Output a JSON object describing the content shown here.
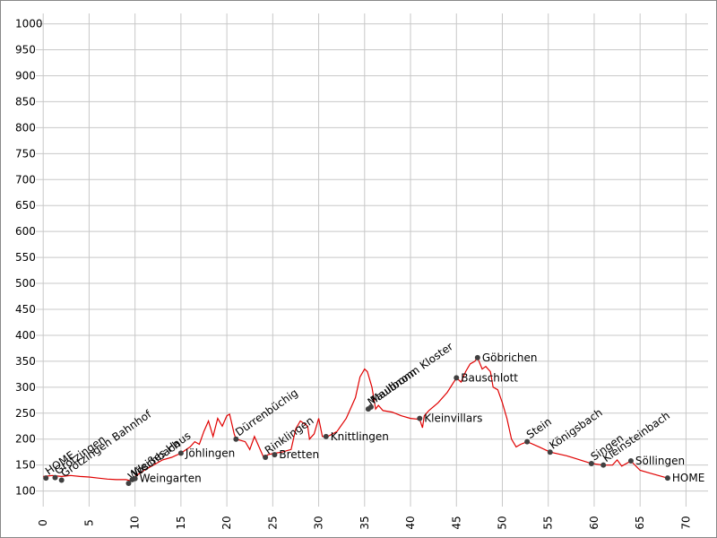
{
  "chart_data": {
    "type": "line",
    "color": "#e00000",
    "point_color": "#404040",
    "grid": true,
    "xlim": [
      -0.8,
      72.4
    ],
    "ylim": [
      70,
      1020
    ],
    "xticks": [
      0,
      5,
      10,
      15,
      20,
      25,
      30,
      35,
      40,
      45,
      50,
      55,
      60,
      65,
      70
    ],
    "yticks": [
      100,
      150,
      200,
      250,
      300,
      350,
      400,
      450,
      500,
      550,
      600,
      650,
      700,
      750,
      800,
      850,
      900,
      950,
      1000
    ],
    "x": [
      0,
      1,
      2,
      3,
      4,
      5,
      6,
      7,
      8,
      9,
      9.5,
      10,
      11,
      12,
      13,
      14,
      15,
      16,
      16.5,
      17,
      17.5,
      18,
      18.5,
      19,
      19.5,
      20,
      20.3,
      20.8,
      21,
      22,
      22.5,
      23,
      23.5,
      24,
      24.5,
      25,
      26,
      27,
      27.5,
      28,
      28.8,
      29,
      29.5,
      30,
      30.4,
      31,
      32,
      33,
      34,
      34.5,
      35,
      35.3,
      35.8,
      36.2,
      36.5,
      37,
      38,
      39,
      40,
      41,
      41.3,
      41.5,
      42,
      43,
      44,
      45,
      45.5,
      46,
      46.5,
      47,
      47.3,
      47.8,
      48.2,
      48.7,
      49,
      49.5,
      50,
      50.5,
      51,
      51.5,
      52,
      52.7,
      54,
      55.2,
      57,
      59.7,
      61,
      62,
      62.5,
      63,
      64,
      65,
      66,
      68
    ],
    "values": [
      128,
      130,
      128,
      130,
      128,
      127,
      125,
      123,
      122,
      122,
      120,
      128,
      140,
      150,
      160,
      165,
      173,
      185,
      195,
      190,
      215,
      235,
      205,
      240,
      225,
      245,
      248,
      210,
      200,
      195,
      180,
      205,
      185,
      165,
      170,
      172,
      175,
      180,
      220,
      235,
      225,
      200,
      210,
      240,
      205,
      205,
      215,
      240,
      280,
      320,
      335,
      330,
      300,
      258,
      265,
      255,
      252,
      245,
      240,
      238,
      222,
      245,
      255,
      270,
      290,
      318,
      310,
      330,
      345,
      350,
      357,
      335,
      340,
      330,
      300,
      295,
      270,
      240,
      200,
      185,
      190,
      195,
      185,
      175,
      168,
      153,
      150,
      150,
      160,
      148,
      158,
      140,
      135,
      125
    ],
    "waypoints": [
      {
        "label": "HOME",
        "x": 0.3,
        "y": 125
      },
      {
        "label": "Grötzingen",
        "x": 1.3,
        "y": 126
      },
      {
        "label": "Grötzingen Bahnhof",
        "x": 2,
        "y": 121
      },
      {
        "label": "Wöschbach",
        "x": 9.3,
        "y": 115
      },
      {
        "label": "Weißes Haus",
        "x": 9.7,
        "y": 122
      },
      {
        "label": "Weingarten",
        "x": 10,
        "y": 124
      },
      {
        "label": "Jöhlingen",
        "x": 15,
        "y": 173
      },
      {
        "label": "Dürrenbüchig",
        "x": 21,
        "y": 200
      },
      {
        "label": "Rinklingen",
        "x": 24.2,
        "y": 165
      },
      {
        "label": "Bretten",
        "x": 25.2,
        "y": 170
      },
      {
        "label": "Knittlingen",
        "x": 30.8,
        "y": 205
      },
      {
        "label": "Maulbronn",
        "x": 35.4,
        "y": 258
      },
      {
        "label": "Maulbronn Kloster",
        "x": 35.7,
        "y": 262
      },
      {
        "label": "Kleinvillars",
        "x": 41,
        "y": 240
      },
      {
        "label": "Bauschlott",
        "x": 45,
        "y": 318
      },
      {
        "label": "Göbrichen",
        "x": 47.3,
        "y": 357
      },
      {
        "label": "Stein",
        "x": 52.7,
        "y": 195
      },
      {
        "label": "Königsbach",
        "x": 55.2,
        "y": 175
      },
      {
        "label": "Singen",
        "x": 59.7,
        "y": 153
      },
      {
        "label": "Kleinsteinbach",
        "x": 61,
        "y": 150
      },
      {
        "label": "Söllingen",
        "x": 64,
        "y": 158
      },
      {
        "label": "HOME",
        "x": 68,
        "y": 125
      }
    ]
  }
}
